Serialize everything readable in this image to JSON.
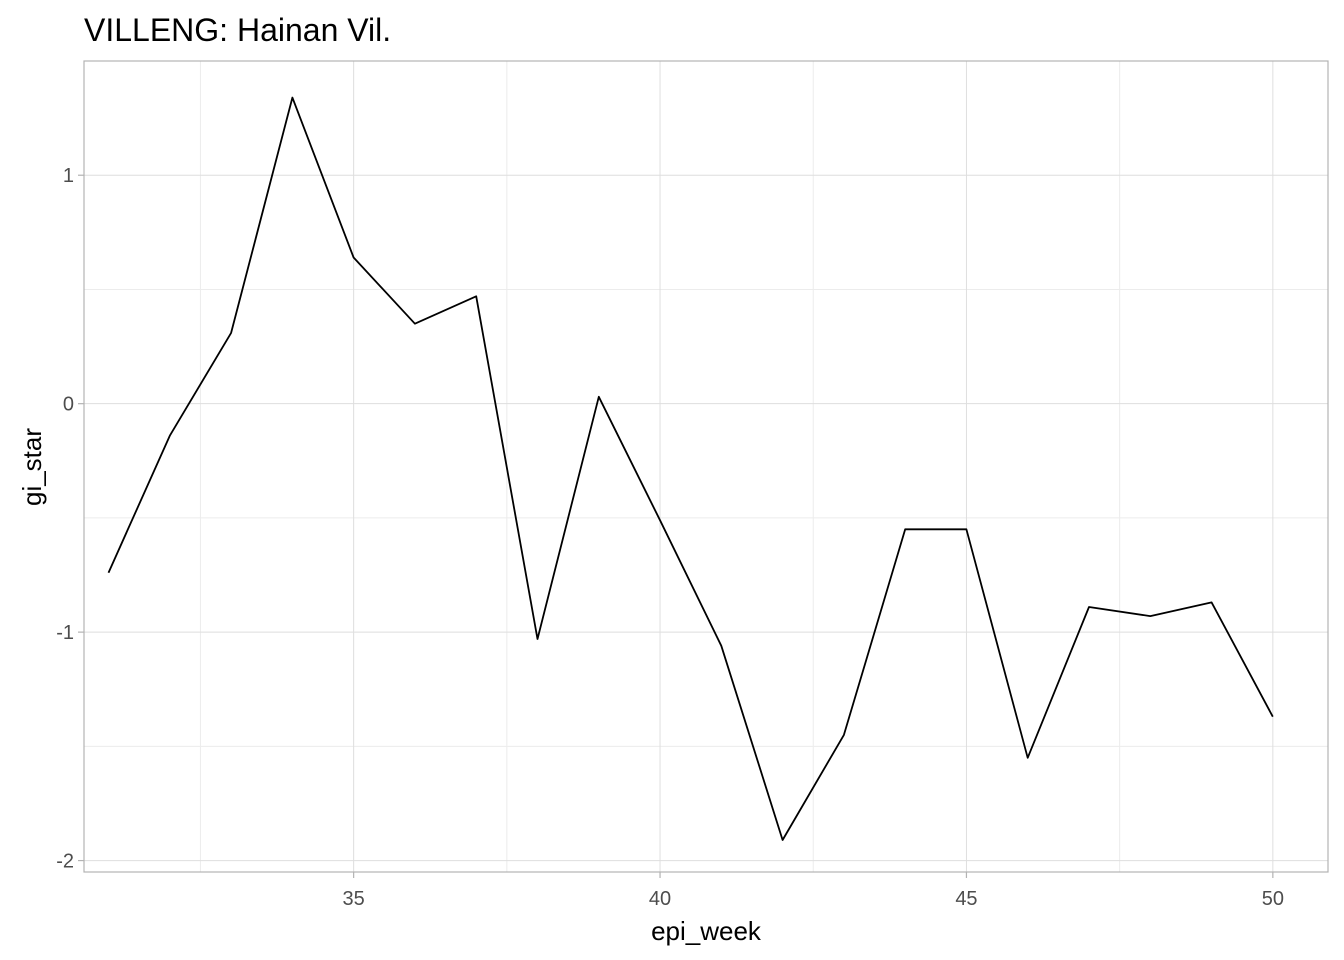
{
  "chart_data": {
    "type": "line",
    "title": "VILLENG: Hainan Vil.",
    "xlabel": "epi_week",
    "ylabel": "gi_star",
    "xlim": [
      30.6,
      50.9
    ],
    "ylim": [
      -2.05,
      1.5
    ],
    "x_ticks": [
      35,
      40,
      45,
      50
    ],
    "x_tick_labels": [
      "35",
      "40",
      "45",
      "50"
    ],
    "y_ticks": [
      1,
      0,
      -1,
      -2
    ],
    "y_tick_labels": [
      "1",
      "0",
      "-1",
      "-2"
    ],
    "grid": true,
    "legend": "none",
    "series": [
      {
        "color": "#000000",
        "x": [
          31,
          32,
          33,
          34,
          35,
          36,
          37,
          38,
          39,
          40,
          41,
          42,
          43,
          44,
          45,
          46,
          47,
          48,
          49,
          50
        ],
        "y": [
          -0.74,
          -0.14,
          0.31,
          1.34,
          0.64,
          0.35,
          0.47,
          -1.03,
          0.03,
          -0.51,
          -1.06,
          -1.91,
          -1.45,
          -0.55,
          -0.55,
          -1.55,
          -0.89,
          -0.93,
          -0.87,
          -1.37
        ]
      }
    ]
  }
}
